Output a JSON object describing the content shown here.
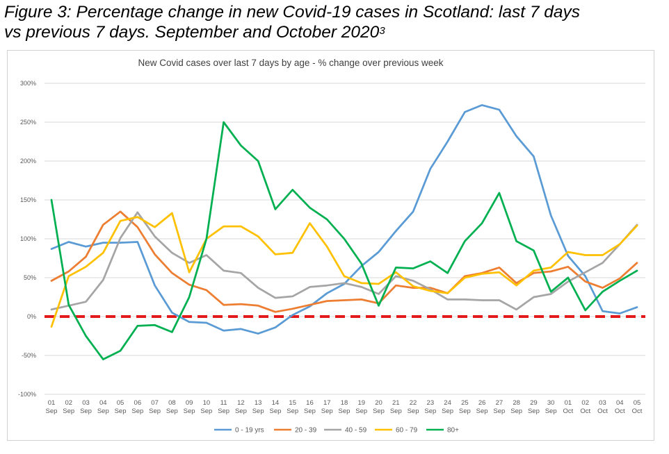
{
  "figure_title": {
    "line1": "Figure 3: Percentage change in new Covid-19 cases in Scotland: last 7 days",
    "line2": "vs previous 7 days. September and October 2020",
    "superscript": "3"
  },
  "chart_data": {
    "type": "line",
    "title": "New Covid cases over last 7 days by age - % change over previous week",
    "xlabel": "",
    "ylabel": "",
    "categories": [
      [
        "01",
        "Sep"
      ],
      [
        "02",
        "Sep"
      ],
      [
        "03",
        "Sep"
      ],
      [
        "04",
        "Sep"
      ],
      [
        "05",
        "Sep"
      ],
      [
        "06",
        "Sep"
      ],
      [
        "07",
        "Sep"
      ],
      [
        "08",
        "Sep"
      ],
      [
        "09",
        "Sep"
      ],
      [
        "10",
        "Sep"
      ],
      [
        "11",
        "Sep"
      ],
      [
        "12",
        "Sep"
      ],
      [
        "13",
        "Sep"
      ],
      [
        "14",
        "Sep"
      ],
      [
        "15",
        "Sep"
      ],
      [
        "16",
        "Sep"
      ],
      [
        "17",
        "Sep"
      ],
      [
        "18",
        "Sep"
      ],
      [
        "19",
        "Sep"
      ],
      [
        "20",
        "Sep"
      ],
      [
        "21",
        "Sep"
      ],
      [
        "22",
        "Sep"
      ],
      [
        "23",
        "Sep"
      ],
      [
        "24",
        "Sep"
      ],
      [
        "25",
        "Sep"
      ],
      [
        "26",
        "Sep"
      ],
      [
        "27",
        "Sep"
      ],
      [
        "28",
        "Sep"
      ],
      [
        "29",
        "Sep"
      ],
      [
        "30",
        "Sep"
      ],
      [
        "01",
        "Oct"
      ],
      [
        "02",
        "Oct"
      ],
      [
        "03",
        "Oct"
      ],
      [
        "04",
        "Oct"
      ],
      [
        "05",
        "Oct"
      ]
    ],
    "ylim": [
      -100,
      300
    ],
    "yticks": [
      -100,
      -50,
      0,
      50,
      100,
      150,
      200,
      250,
      300
    ],
    "ytick_labels": [
      "-100%",
      "-50%",
      "0%",
      "50%",
      "100%",
      "150%",
      "200%",
      "250%",
      "300%"
    ],
    "grid": true,
    "legend_position": "bottom",
    "reference_line": {
      "value": 0,
      "color": "#e31a1c",
      "style": "dashed"
    },
    "series": [
      {
        "name": "0 - 19 yrs",
        "color": "#5b9bd5",
        "values": [
          87,
          96,
          90,
          95,
          95,
          96,
          40,
          5,
          -7,
          -8,
          -18,
          -16,
          -22,
          -14,
          2,
          13,
          30,
          42,
          65,
          83,
          110,
          135,
          190,
          225,
          263,
          272,
          266,
          232,
          206,
          130,
          78,
          52,
          7,
          4,
          12
        ]
      },
      {
        "name": "20 - 39",
        "color": "#ed7d31",
        "values": [
          46,
          58,
          77,
          118,
          135,
          115,
          80,
          56,
          41,
          34,
          15,
          16,
          14,
          6,
          10,
          15,
          20,
          21,
          22,
          17,
          40,
          37,
          37,
          30,
          52,
          56,
          63,
          43,
          56,
          58,
          64,
          45,
          37,
          49,
          69
        ]
      },
      {
        "name": "40 - 59",
        "color": "#a5a5a5",
        "values": [
          9,
          14,
          19,
          47,
          101,
          134,
          103,
          82,
          69,
          79,
          59,
          56,
          37,
          24,
          26,
          38,
          40,
          43,
          38,
          29,
          52,
          46,
          35,
          22,
          22,
          21,
          21,
          9,
          25,
          29,
          45,
          57,
          69,
          93,
          118
        ]
      },
      {
        "name": "60 - 79",
        "color": "#ffc000",
        "values": [
          -13,
          52,
          64,
          82,
          123,
          128,
          115,
          133,
          57,
          100,
          116,
          116,
          103,
          80,
          82,
          120,
          90,
          52,
          43,
          42,
          57,
          39,
          33,
          30,
          50,
          55,
          57,
          40,
          59,
          63,
          83,
          79,
          79,
          93,
          117
        ]
      },
      {
        "name": "80+",
        "color": "#00b050",
        "values": [
          150,
          15,
          -25,
          -55,
          -44,
          -12,
          -11,
          -20,
          25,
          100,
          250,
          220,
          200,
          138,
          163,
          140,
          125,
          100,
          68,
          14,
          63,
          62,
          71,
          56,
          97,
          120,
          159,
          97,
          85,
          32,
          50,
          8,
          32,
          46,
          59
        ]
      }
    ]
  }
}
